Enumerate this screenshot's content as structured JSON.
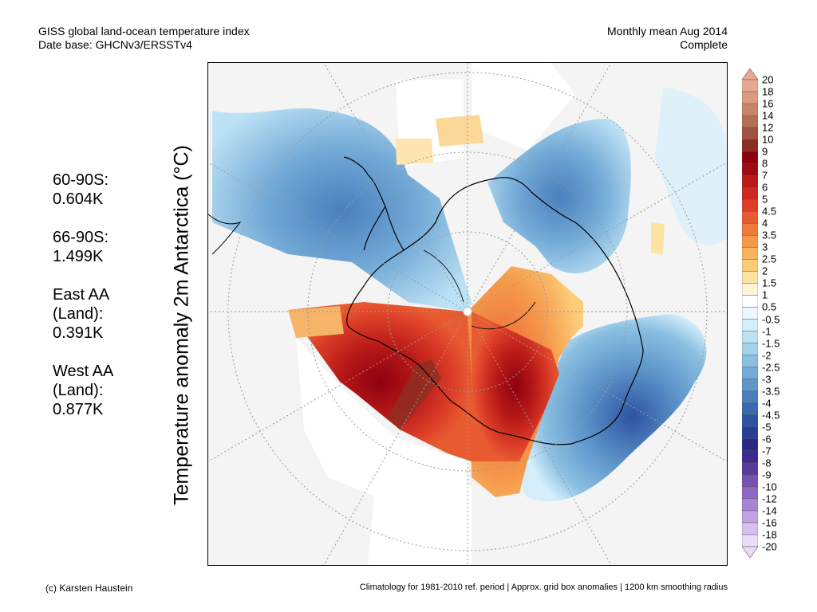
{
  "header": {
    "title_line1": "GISS global land-ocean temperature index",
    "title_line2": "Date base: GHCNv3/ERSSTv4",
    "period_line1": "Monthly mean Aug 2014",
    "period_line2": "Complete"
  },
  "stats": [
    {
      "label_lines": [
        "60-90S:"
      ],
      "value": "0.604K"
    },
    {
      "label_lines": [
        "66-90S:"
      ],
      "value": "1.499K"
    },
    {
      "label_lines": [
        "East AA",
        "(Land):"
      ],
      "value": "0.391K"
    },
    {
      "label_lines": [
        "West AA",
        "(Land):"
      ],
      "value": "0.877K"
    }
  ],
  "map": {
    "y_axis_label": "Temperature anomaly 2m Antarctica (°C)",
    "projection": "south-polar-stereographic",
    "background_color": "#f4f4f4",
    "gridlines": "dotted",
    "coastline_color": "#000000"
  },
  "colorbar": {
    "labels": [
      "20",
      "18",
      "16",
      "14",
      "12",
      "10",
      "9",
      "8",
      "7",
      "6",
      "5",
      "4.5",
      "4",
      "3.5",
      "3",
      "2.5",
      "2",
      "1.5",
      "1",
      "0.5",
      "-0.5",
      "-1",
      "-1.5",
      "-2",
      "-2.5",
      "-3",
      "-3.5",
      "-4",
      "-4.5",
      "-5",
      "-6",
      "-7",
      "-8",
      "-9",
      "-10",
      "-12",
      "-14",
      "-16",
      "-18",
      "-20"
    ],
    "colors": [
      "#e8a890",
      "#dc9a80",
      "#c98468",
      "#b56e52",
      "#a0523c",
      "#8c2e22",
      "#8e0010",
      "#a00a12",
      "#b81a18",
      "#cc2a20",
      "#dc3e28",
      "#e85a30",
      "#f07a3c",
      "#f5984a",
      "#f8b45c",
      "#fbcd78",
      "#fde4a4",
      "#fff4d8",
      "#ffffff",
      "#eaf7fd",
      "#d4eefb",
      "#bde2f5",
      "#a4d2ec",
      "#8cc0e2",
      "#73aad6",
      "#5e96ca",
      "#4a7fbd",
      "#3a69b0",
      "#2d53a2",
      "#263e94",
      "#2a2a86",
      "#3c2a8c",
      "#5a3a9c",
      "#7650b2",
      "#9068c4",
      "#a884d4",
      "#c2a2e2",
      "#d8c0ee",
      "#e8dcf7"
    ]
  },
  "footer": {
    "credit": "(c) Karsten Haustein",
    "note": "Climatology for 1981-2010 ref. period | Approx. grid box anomalies | 1200 km smoothing radius"
  }
}
